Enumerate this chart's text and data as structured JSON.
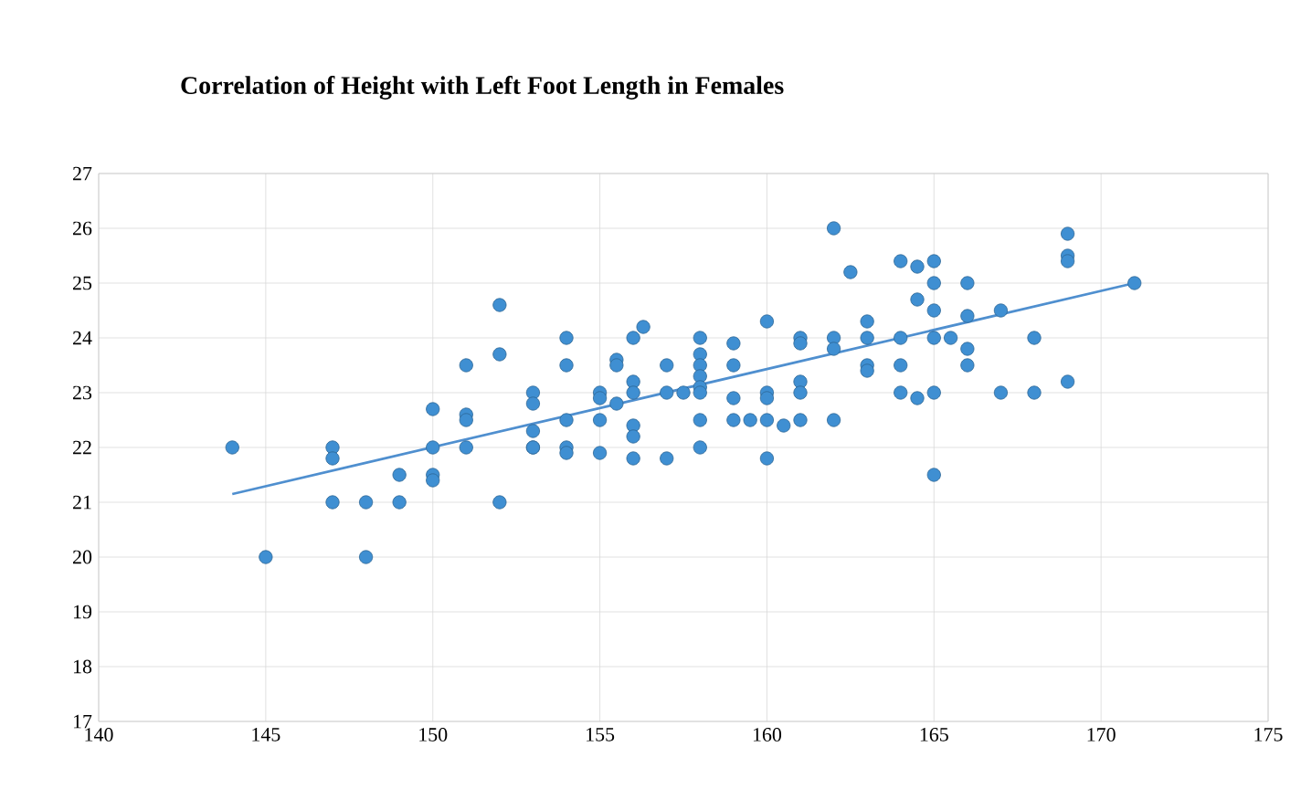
{
  "chart_data": {
    "type": "scatter",
    "title": "Correlation of Height with Left Foot Length in Females",
    "xlim": [
      140,
      175
    ],
    "xticks": [
      140,
      145,
      150,
      155,
      160,
      165,
      170,
      175
    ],
    "ylim": [
      17,
      27
    ],
    "yticks": [
      17,
      18,
      19,
      20,
      21,
      22,
      23,
      24,
      25,
      26,
      27
    ],
    "grid": true,
    "series": [
      {
        "marker": "circle",
        "color": "#3f8fd2",
        "x": [
          144,
          145,
          147,
          147,
          147,
          148,
          148,
          149,
          149,
          150,
          150,
          150,
          150,
          151,
          151,
          151,
          151,
          152,
          152,
          152,
          153,
          153,
          153,
          153,
          153,
          154,
          154,
          154,
          154,
          154,
          155,
          155,
          155,
          155,
          155.5,
          155.5,
          155.5,
          156,
          156,
          156,
          156,
          156,
          156,
          156.3,
          157,
          157,
          157,
          157.5,
          158,
          158,
          158,
          158,
          158,
          158,
          158,
          158,
          159,
          159,
          159,
          159,
          159.5,
          160,
          160,
          160,
          160,
          160,
          160.5,
          161,
          161,
          161,
          161,
          161,
          162,
          162,
          162,
          162,
          162.5,
          163,
          163,
          163,
          163,
          164,
          164,
          164,
          164,
          164.5,
          164.5,
          164.5,
          165,
          165,
          165,
          165,
          165,
          165,
          165.5,
          166,
          166,
          166,
          166,
          167,
          167,
          168,
          168,
          169,
          169,
          169,
          169,
          171
        ],
        "values": [
          22,
          20,
          22,
          21.8,
          21,
          21,
          20,
          21.5,
          21,
          22.7,
          22,
          21.5,
          21.4,
          23.5,
          22.6,
          22.5,
          22,
          24.6,
          23.7,
          21,
          23,
          22.8,
          22.3,
          22,
          22,
          24,
          23.5,
          22.5,
          22,
          21.9,
          23,
          22.9,
          22.5,
          21.9,
          23.6,
          23.5,
          22.8,
          24,
          23.2,
          23,
          22.4,
          22.2,
          21.8,
          24.2,
          23.5,
          23,
          21.8,
          23,
          24,
          23.7,
          23.5,
          23.3,
          23.1,
          23,
          22.5,
          22,
          23.9,
          23.5,
          22.9,
          22.5,
          22.5,
          24.3,
          23,
          22.9,
          22.5,
          21.8,
          22.4,
          24,
          23.9,
          23.2,
          23,
          22.5,
          26,
          24,
          23.8,
          22.5,
          25.2,
          24.3,
          24,
          23.5,
          23.4,
          25.4,
          24,
          23.5,
          23,
          25.3,
          24.7,
          22.9,
          25.4,
          25,
          24.5,
          24,
          23,
          21.5,
          24,
          25,
          24.4,
          23.8,
          23.5,
          24.5,
          23,
          24,
          23,
          25.9,
          25.5,
          25.4,
          23.2,
          25
        ]
      },
      {
        "type": "line",
        "color": "#4f8fcf",
        "x": [
          144,
          171
        ],
        "values": [
          21.15,
          25.0
        ]
      }
    ]
  }
}
